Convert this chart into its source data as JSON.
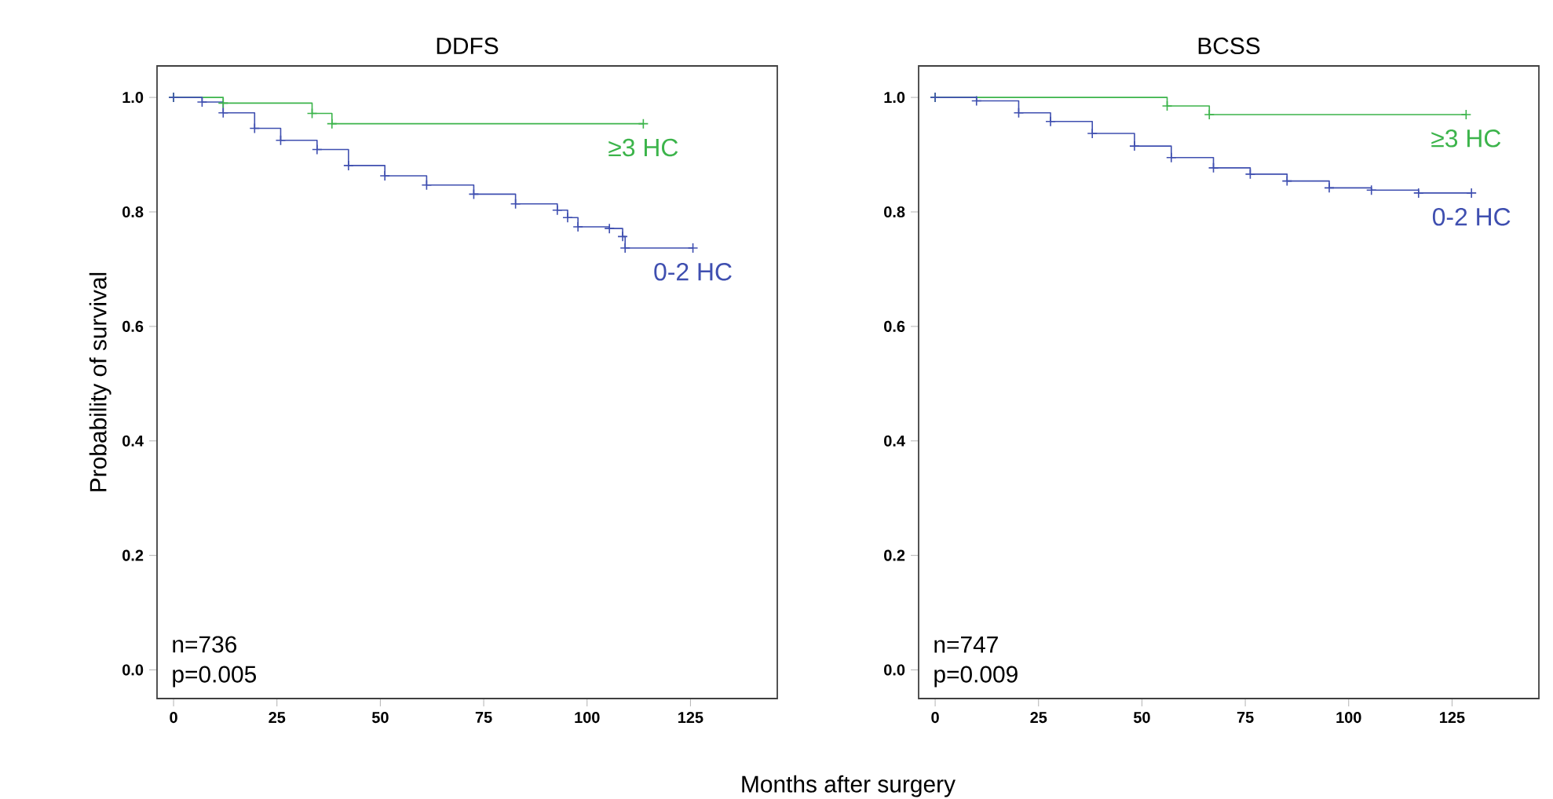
{
  "chart_data": [
    {
      "type": "step",
      "title": "DDFS",
      "xlabel": "Months after surgery",
      "ylabel": "Probability of survival",
      "xlim": [
        -4,
        146
      ],
      "ylim": [
        -0.05,
        1.055
      ],
      "xticks": [
        0,
        25,
        50,
        75,
        100,
        125
      ],
      "yticks": [
        {
          "value": 0,
          "label": "0.0"
        },
        {
          "value": 0.2,
          "label": "0.2"
        },
        {
          "value": 0.4,
          "label": "0.4"
        },
        {
          "value": 0.6,
          "label": "0.6"
        },
        {
          "value": 0.8,
          "label": "0.8"
        },
        {
          "value": 1.0,
          "label": "1.0"
        }
      ],
      "marker": "cross",
      "annotations": [
        "n=736",
        "p=0.005"
      ],
      "series": [
        {
          "name": "≥3 HC",
          "color": "#3cb44b",
          "x": [
            0,
            12,
            33.5,
            38.3,
            113.6
          ],
          "values": [
            1.0,
            0.99,
            0.972,
            0.954,
            0.954
          ]
        },
        {
          "name": "0-2 HC",
          "color": "#3f4fb0",
          "x": [
            0,
            6.9,
            12,
            19.6,
            25.9,
            34.7,
            42.3,
            51.1,
            61.2,
            72.6,
            82.7,
            92.8,
            95.3,
            97.8,
            105.4,
            108.6,
            109.2,
            125.6
          ],
          "values": [
            1.0,
            0.992,
            0.973,
            0.946,
            0.925,
            0.909,
            0.881,
            0.863,
            0.847,
            0.831,
            0.814,
            0.803,
            0.79,
            0.774,
            0.771,
            0.757,
            0.737,
            0.737
          ]
        }
      ]
    },
    {
      "type": "step",
      "title": "BCSS",
      "xlim": [
        -4,
        146
      ],
      "ylim": [
        -0.05,
        1.055
      ],
      "xticks": [
        0,
        25,
        50,
        75,
        100,
        125
      ],
      "yticks": [
        {
          "value": 0,
          "label": "0.0"
        },
        {
          "value": 0.2,
          "label": "0.2"
        },
        {
          "value": 0.4,
          "label": "0.4"
        },
        {
          "value": 0.6,
          "label": "0.6"
        },
        {
          "value": 0.8,
          "label": "0.8"
        },
        {
          "value": 1.0,
          "label": "1.0"
        }
      ],
      "marker": "cross",
      "annotations": [
        "n=747",
        "p=0.009"
      ],
      "series": [
        {
          "name": "≥3 HC",
          "color": "#3cb44b",
          "x": [
            0,
            56.1,
            66.3,
            128.4
          ],
          "values": [
            1.0,
            0.985,
            0.97,
            0.97
          ]
        },
        {
          "name": "0-2 HC",
          "color": "#3f4fb0",
          "x": [
            0,
            10,
            20.2,
            27.9,
            38,
            48.2,
            57.1,
            67.3,
            76.2,
            85.1,
            95.3,
            105.5,
            116.9,
            129.7
          ],
          "values": [
            1.0,
            0.994,
            0.973,
            0.958,
            0.937,
            0.915,
            0.895,
            0.877,
            0.866,
            0.854,
            0.842,
            0.838,
            0.833,
            0.833
          ]
        }
      ]
    }
  ]
}
